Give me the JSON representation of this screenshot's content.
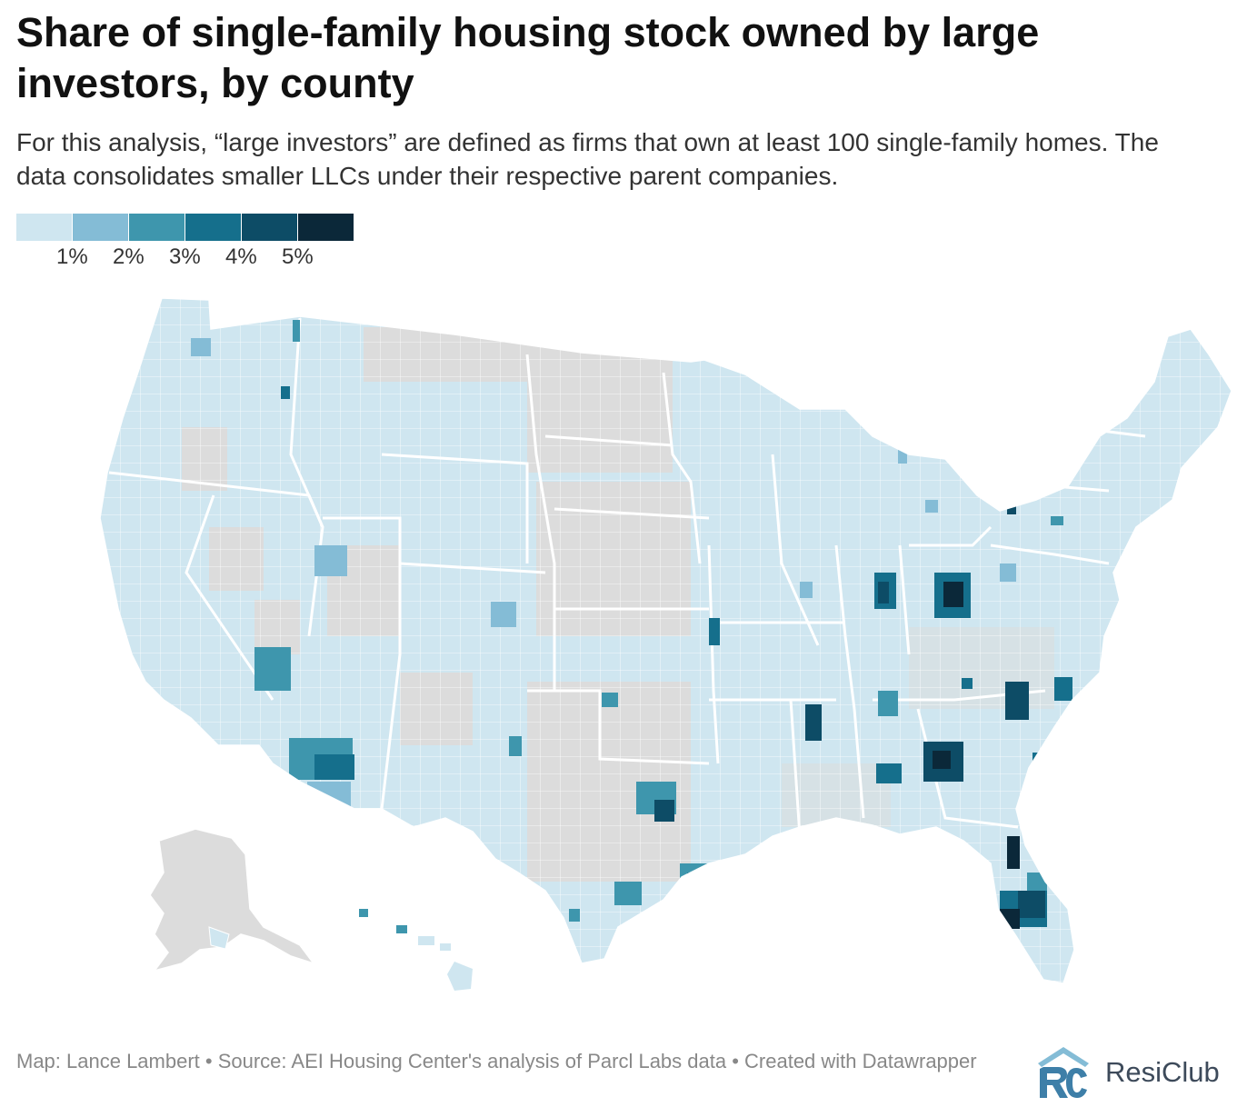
{
  "title": "Share of single-family housing stock owned by large investors, by county",
  "subtitle": "For this analysis, “large investors” are defined as firms that own at least 100 single-family homes. The data consolidates smaller LLCs under their respective parent companies.",
  "legend": {
    "colors": [
      "#cfe6f0",
      "#84bcd6",
      "#3e96ad",
      "#156f8c",
      "#0d4c66",
      "#0b2839"
    ],
    "ticks": [
      "1%",
      "2%",
      "3%",
      "4%",
      "5%"
    ]
  },
  "map": {
    "land_color": "#cfe6f0",
    "no_data_color": "#dcdcdc",
    "border_color": "#ffffff"
  },
  "footer": {
    "credit": "Map: Lance Lambert • Source: AEI Housing Center's analysis of Parcl Labs data • Created with Datawrapper"
  },
  "logo": {
    "text": "ResiClub",
    "color": "#3d4a5a"
  }
}
